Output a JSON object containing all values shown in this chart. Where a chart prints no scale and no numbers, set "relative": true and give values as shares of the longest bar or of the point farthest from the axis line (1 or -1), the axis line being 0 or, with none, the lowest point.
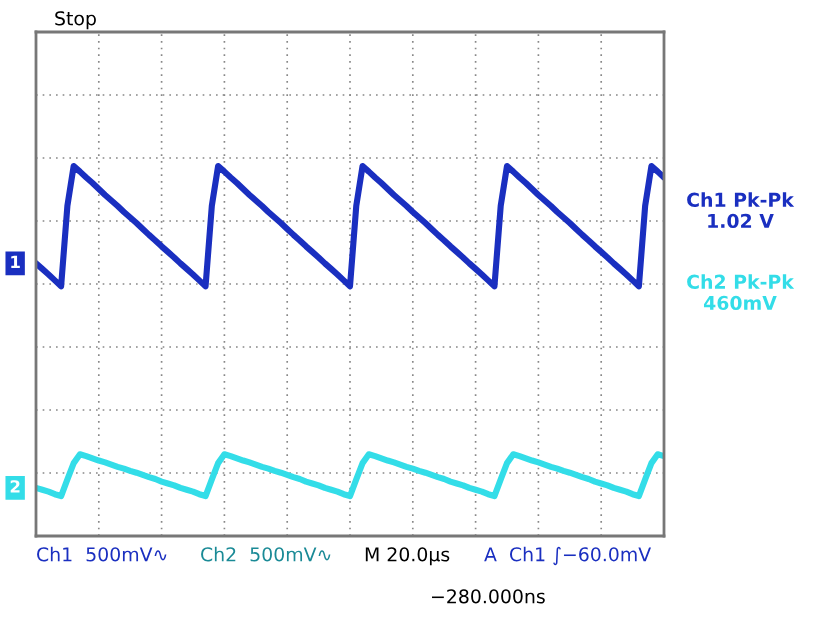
{
  "chart_data": {
    "type": "line",
    "relative": true,
    "grid": true,
    "legend": false,
    "marker": "none",
    "line_style": "solid",
    "tick_labels": false,
    "categories": [
      null,
      null,
      null,
      null,
      null,
      null,
      null,
      null,
      null,
      null,
      null,
      null,
      null,
      null,
      null,
      null,
      null,
      null,
      null,
      null,
      null,
      null,
      null,
      null,
      null,
      null,
      null,
      null,
      null,
      null,
      null,
      null,
      null,
      null,
      null,
      null,
      null,
      null,
      null,
      null,
      null,
      null,
      null,
      null,
      null,
      null,
      null,
      null,
      null,
      null,
      null,
      null,
      null,
      null,
      null,
      null,
      null,
      null,
      null,
      null,
      null,
      null,
      null,
      null,
      null,
      null,
      null,
      null,
      null,
      null,
      null,
      null,
      null,
      null,
      null,
      null,
      null,
      null,
      null,
      null,
      null,
      null,
      null,
      null,
      null,
      null,
      null,
      null,
      null,
      null,
      null,
      null,
      null,
      null,
      null,
      null,
      null,
      null,
      null,
      null,
      null
    ],
    "series": [
      {
        "name": "1",
        "color": "#1a2fc0",
        "values": [
          0.737,
          0.722,
          0.707,
          0.691,
          0.675,
          0.893,
          1.0,
          0.985,
          0.969,
          0.954,
          0.938,
          0.922,
          0.907,
          0.892,
          0.876,
          0.861,
          0.846,
          0.83,
          0.814,
          0.799,
          0.783,
          0.768,
          0.753,
          0.737,
          0.722,
          0.707,
          0.691,
          0.675,
          0.893,
          1.0,
          0.985,
          0.969,
          0.954,
          0.938,
          0.922,
          0.907,
          0.892,
          0.876,
          0.861,
          0.846,
          0.83,
          0.814,
          0.799,
          0.783,
          0.768,
          0.753,
          0.737,
          0.722,
          0.707,
          0.691,
          0.675,
          0.893,
          1.0,
          0.985,
          0.969,
          0.954,
          0.938,
          0.922,
          0.907,
          0.892,
          0.876,
          0.861,
          0.846,
          0.83,
          0.814,
          0.799,
          0.783,
          0.768,
          0.753,
          0.737,
          0.722,
          0.707,
          0.691,
          0.675,
          0.893,
          1.0,
          0.985,
          0.969,
          0.954,
          0.938,
          0.922,
          0.907,
          0.892,
          0.876,
          0.861,
          0.846,
          0.83,
          0.814,
          0.799,
          0.783,
          0.768,
          0.753,
          0.737,
          0.722,
          0.707,
          0.691,
          0.675,
          0.893,
          1.0,
          0.985,
          0.969
        ]
      },
      {
        "name": "2",
        "color": "#33dde8",
        "values": [
          0.13,
          0.125,
          0.12,
          0.113,
          0.108,
          0.153,
          0.197,
          0.221,
          0.216,
          0.21,
          0.204,
          0.199,
          0.193,
          0.187,
          0.182,
          0.176,
          0.171,
          0.165,
          0.159,
          0.154,
          0.147,
          0.142,
          0.137,
          0.13,
          0.125,
          0.12,
          0.113,
          0.108,
          0.153,
          0.197,
          0.221,
          0.216,
          0.21,
          0.204,
          0.199,
          0.193,
          0.187,
          0.182,
          0.176,
          0.171,
          0.165,
          0.159,
          0.154,
          0.147,
          0.142,
          0.137,
          0.13,
          0.125,
          0.12,
          0.113,
          0.108,
          0.153,
          0.197,
          0.221,
          0.216,
          0.21,
          0.204,
          0.199,
          0.193,
          0.187,
          0.182,
          0.176,
          0.171,
          0.165,
          0.159,
          0.154,
          0.147,
          0.142,
          0.137,
          0.13,
          0.125,
          0.12,
          0.113,
          0.108,
          0.153,
          0.197,
          0.221,
          0.216,
          0.21,
          0.204,
          0.199,
          0.193,
          0.187,
          0.182,
          0.176,
          0.171,
          0.165,
          0.159,
          0.154,
          0.147,
          0.142,
          0.137,
          0.13,
          0.125,
          0.12,
          0.113,
          0.108,
          0.153,
          0.197,
          0.221,
          0.216
        ]
      }
    ],
    "annotations": [
      "Stop",
      "Ch1 Pk-Pk\n1.02 V",
      "Ch2 Pk-Pk\n460mV",
      "Ch1  500mV∿",
      "Ch2  500mV∿",
      "M 20.0µs",
      "A  Ch1 ∫−60.0mV",
      "−280.000ns"
    ]
  }
}
